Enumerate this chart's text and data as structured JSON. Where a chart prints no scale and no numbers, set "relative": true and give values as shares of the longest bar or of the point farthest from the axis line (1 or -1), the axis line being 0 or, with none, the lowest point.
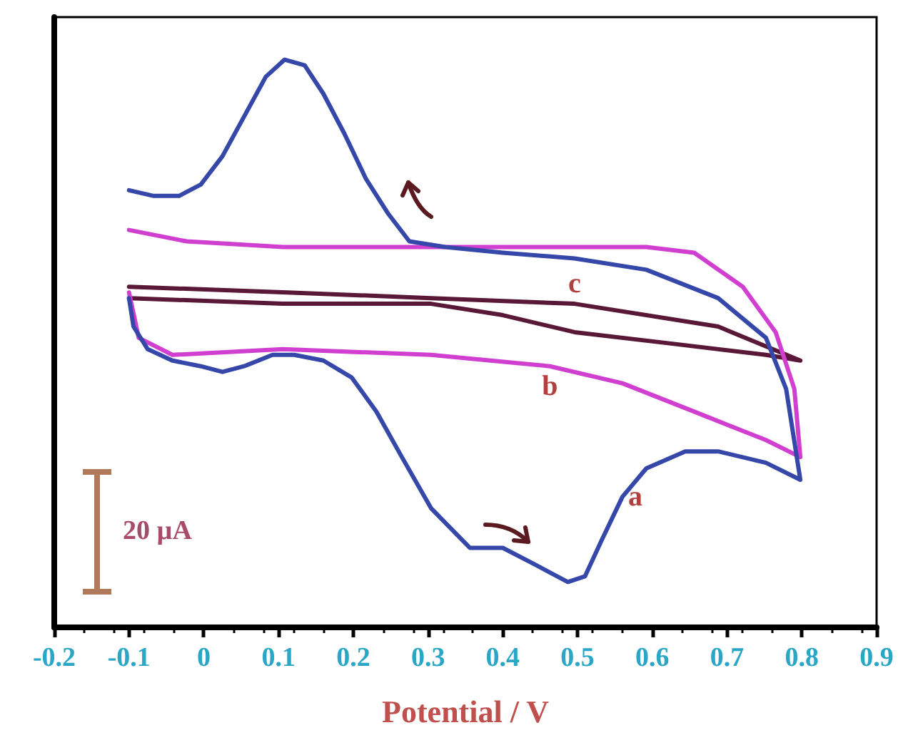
{
  "chart_data": {
    "type": "line",
    "xlabel": "Potential / V",
    "relative": true,
    "xlim": [
      -0.2,
      0.9
    ],
    "xticks": [
      -0.2,
      -0.1,
      0,
      0.1,
      0.2,
      0.3,
      0.4,
      0.5,
      0.6,
      0.7,
      0.8,
      0.9
    ],
    "tick_labels": "x",
    "grid": false,
    "legend": false,
    "marker": "none",
    "line_style": "solid",
    "annotations": [
      "20 µA"
    ],
    "series": [
      {
        "name": "a",
        "color": "#3547a8",
        "x": [
          -0.1,
          -0.067,
          -0.033,
          -0.004,
          0.025,
          0.054,
          0.083,
          0.108,
          0.135,
          0.16,
          0.188,
          0.217,
          0.246,
          0.275,
          0.323,
          0.4,
          0.496,
          0.592,
          0.688,
          0.752,
          0.779,
          0.798,
          0.752,
          0.688,
          0.644,
          0.592,
          0.56,
          0.531,
          0.51,
          0.487,
          0.444,
          0.4,
          0.356,
          0.304,
          0.265,
          0.231,
          0.198,
          0.16,
          0.121,
          0.092,
          0.054,
          0.025,
          -0.004,
          -0.042,
          -0.075,
          -0.094,
          -0.1
        ],
        "values": [
          0.77,
          0.76,
          0.76,
          0.78,
          0.83,
          0.9,
          0.97,
          1.0,
          0.99,
          0.94,
          0.87,
          0.79,
          0.73,
          0.68,
          0.67,
          0.66,
          0.65,
          0.63,
          0.58,
          0.51,
          0.42,
          0.26,
          0.29,
          0.31,
          0.31,
          0.28,
          0.23,
          0.15,
          0.09,
          0.08,
          0.11,
          0.14,
          0.14,
          0.21,
          0.3,
          0.38,
          0.44,
          0.47,
          0.48,
          0.48,
          0.46,
          0.45,
          0.46,
          0.47,
          0.49,
          0.53,
          0.58
        ]
      },
      {
        "name": "b",
        "color": "#d03fd0",
        "x": [
          -0.1,
          -0.023,
          0.106,
          0.298,
          0.592,
          0.656,
          0.721,
          0.765,
          0.79,
          0.798,
          0.752,
          0.656,
          0.56,
          0.463,
          0.304,
          0.106,
          -0.042,
          -0.087,
          -0.1
        ],
        "values": [
          0.7,
          0.68,
          0.67,
          0.67,
          0.67,
          0.66,
          0.6,
          0.52,
          0.42,
          0.3,
          0.33,
          0.38,
          0.43,
          0.46,
          0.48,
          0.49,
          0.48,
          0.51,
          0.59
        ]
      },
      {
        "name": "c",
        "color": "#5a1838",
        "x": [
          -0.1,
          0.112,
          0.304,
          0.496,
          0.688,
          0.798,
          0.752,
          0.625,
          0.496,
          0.4,
          0.304,
          0.106,
          -0.1
        ],
        "values": [
          0.6,
          0.59,
          0.58,
          0.57,
          0.53,
          0.47,
          0.48,
          0.5,
          0.52,
          0.55,
          0.57,
          0.57,
          0.58
        ]
      }
    ]
  }
}
